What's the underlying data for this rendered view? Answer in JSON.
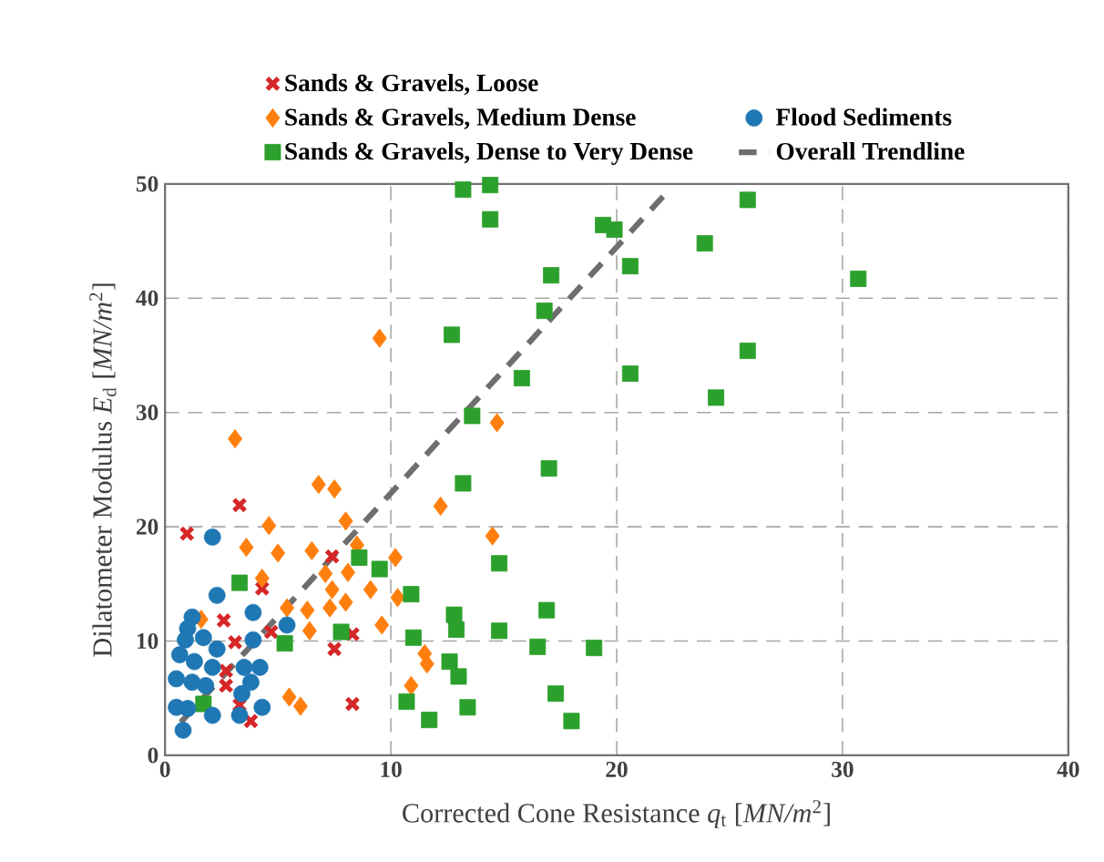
{
  "chart_data": {
    "type": "scatter",
    "xlabel": "Corrected Cone Resistance *q*$_{t}$ [*MN/m*$^{2}$]",
    "ylabel": "Dilatometer Modulus *E*$_{d}$ [*MN/m*$^{2}$]",
    "xlim": [
      0,
      40
    ],
    "ylim": [
      0,
      50
    ],
    "xticks": [
      0,
      10,
      20,
      30,
      40
    ],
    "yticks": [
      0,
      10,
      20,
      30,
      40,
      50
    ],
    "grid": true,
    "legend": "top",
    "series": [
      {
        "name": "Sands & Gravels, Loose",
        "color": "#d62728",
        "marker": "cross",
        "x": [
          0.97,
          3.3,
          4.3,
          2.6,
          3.1,
          2.7,
          2.7,
          3.3,
          3.8,
          4.7,
          7.4,
          7.5,
          8.3,
          8.3
        ],
        "values": [
          19.4,
          21.9,
          14.6,
          11.8,
          9.9,
          7.4,
          6.1,
          4.4,
          3.0,
          10.8,
          17.4,
          9.3,
          10.6,
          4.5
        ]
      },
      {
        "name": "Sands & Gravels, Medium Dense",
        "color": "#ff7f0e",
        "marker": "diamond",
        "x": [
          3.1,
          6.8,
          7.5,
          4.6,
          3.6,
          5.0,
          6.5,
          8.0,
          8.5,
          10.2,
          12.2,
          1.6,
          4.3,
          5.4,
          6.3,
          6.4,
          7.1,
          7.4,
          7.3,
          8.0,
          8.1,
          9.1,
          9.6,
          10.3,
          5.5,
          6.0,
          10.9,
          11.5,
          11.6,
          14.5,
          14.7,
          9.5
        ],
        "values": [
          27.7,
          23.7,
          23.3,
          20.1,
          18.2,
          17.7,
          17.9,
          20.5,
          18.4,
          17.3,
          21.8,
          11.9,
          15.5,
          12.9,
          12.7,
          10.9,
          15.9,
          14.5,
          12.9,
          13.4,
          16.0,
          14.5,
          11.4,
          13.8,
          5.1,
          4.3,
          6.1,
          8.9,
          8.0,
          19.2,
          29.1,
          36.5
        ]
      },
      {
        "name": "Sands & Gravels, Dense to Very Dense",
        "color": "#2ca02c",
        "marker": "square",
        "x": [
          13.2,
          14.4,
          14.4,
          17.1,
          16.8,
          12.7,
          15.8,
          13.6,
          25.8,
          19.4,
          19.9,
          20.6,
          23.9,
          30.7,
          25.8,
          20.6,
          24.4,
          17.0,
          13.2,
          14.8,
          10.9,
          12.8,
          12.9,
          16.9,
          14.8,
          11.0,
          16.5,
          19.0,
          12.6,
          13.0,
          17.3,
          10.7,
          13.4,
          11.7,
          18.0,
          3.3,
          8.6,
          9.5,
          7.8,
          5.3,
          1.7
        ],
        "values": [
          49.5,
          49.9,
          46.9,
          42.0,
          38.9,
          36.8,
          33.0,
          29.7,
          48.6,
          46.4,
          46.0,
          42.8,
          44.8,
          41.7,
          35.4,
          33.4,
          31.3,
          25.1,
          23.8,
          16.8,
          14.1,
          12.3,
          11.0,
          12.7,
          10.9,
          10.3,
          9.5,
          9.4,
          8.2,
          6.9,
          5.4,
          4.7,
          4.2,
          3.1,
          3.0,
          15.1,
          17.3,
          16.3,
          10.8,
          9.8,
          4.5
        ]
      },
      {
        "name": "Flood Sediments",
        "color": "#1f77b4",
        "marker": "circle",
        "x": [
          2.1,
          2.3,
          3.9,
          1.2,
          1.0,
          0.9,
          1.7,
          2.3,
          0.65,
          1.3,
          2.1,
          0.5,
          1.2,
          1.8,
          0.5,
          1.0,
          0.8,
          2.1,
          3.5,
          3.9,
          4.2,
          3.4,
          4.3,
          5.4,
          3.3,
          3.8
        ],
        "values": [
          19.1,
          14.0,
          12.5,
          12.1,
          11.1,
          10.1,
          10.3,
          9.3,
          8.8,
          8.2,
          7.7,
          6.7,
          6.4,
          6.1,
          4.2,
          4.1,
          2.2,
          3.5,
          7.7,
          10.1,
          7.7,
          5.4,
          4.2,
          11.4,
          3.5,
          6.4
        ]
      },
      {
        "name": "Overall Trendline",
        "type": "line",
        "color": "#6e6e6e",
        "marker": "none",
        "line_style": "dashed",
        "x": [
          0.7,
          22.1
        ],
        "values": [
          2.9,
          49.0
        ]
      }
    ]
  }
}
